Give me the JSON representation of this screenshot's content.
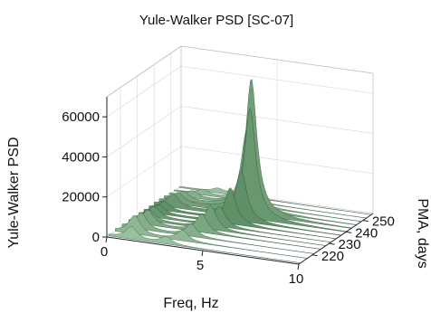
{
  "chart_data": {
    "type": "surface",
    "title": "Yule-Walker PSD [SC-07]",
    "xlabel": "Freq, Hz",
    "ylabel": "PMA, days",
    "zlabel": "Yule-Walker PSD",
    "xlim": [
      0,
      10
    ],
    "ylim": [
      212,
      256
    ],
    "zlim": [
      0,
      70000
    ],
    "x_ticks": [
      0,
      5,
      10
    ],
    "y_ticks": [
      220,
      230,
      240,
      250
    ],
    "z_ticks": [
      0,
      20000,
      40000,
      60000
    ],
    "grid": true,
    "colormap": [
      "#0b2a10",
      "#2f6a33",
      "#7fc38a",
      "#d9f5de"
    ],
    "series": [
      {
        "pma": 213,
        "peaks": [
          {
            "freq": 1.2,
            "value": 6000
          },
          {
            "freq": 3.0,
            "value": 3500
          }
        ]
      },
      {
        "pma": 217,
        "peaks": [
          {
            "freq": 1.0,
            "value": 9000
          },
          {
            "freq": 3.5,
            "value": 5000
          }
        ]
      },
      {
        "pma": 221,
        "peaks": [
          {
            "freq": 1.0,
            "value": 8000
          },
          {
            "freq": 3.6,
            "value": 6000
          }
        ]
      },
      {
        "pma": 225,
        "peaks": [
          {
            "freq": 1.0,
            "value": 7000
          },
          {
            "freq": 3.8,
            "value": 9000
          }
        ]
      },
      {
        "pma": 228,
        "peaks": [
          {
            "freq": 0.8,
            "value": 5000
          },
          {
            "freq": 4.0,
            "value": 12000
          }
        ]
      },
      {
        "pma": 231,
        "peaks": [
          {
            "freq": 0.8,
            "value": 5000
          },
          {
            "freq": 4.2,
            "value": 10000
          }
        ]
      },
      {
        "pma": 234,
        "peaks": [
          {
            "freq": 0.8,
            "value": 4000
          },
          {
            "freq": 4.5,
            "value": 18000
          }
        ]
      },
      {
        "pma": 237,
        "peaks": [
          {
            "freq": 0.8,
            "value": 4000
          },
          {
            "freq": 4.8,
            "value": 25000
          }
        ]
      },
      {
        "pma": 240,
        "peaks": [
          {
            "freq": 1.0,
            "value": 6000
          },
          {
            "freq": 5.0,
            "value": 55000
          }
        ]
      },
      {
        "pma": 243,
        "peaks": [
          {
            "freq": 1.0,
            "value": 5000
          },
          {
            "freq": 4.8,
            "value": 68000
          }
        ]
      },
      {
        "pma": 246,
        "peaks": [
          {
            "freq": 1.0,
            "value": 4000
          },
          {
            "freq": 4.3,
            "value": 40000
          }
        ]
      },
      {
        "pma": 249,
        "peaks": [
          {
            "freq": 1.2,
            "value": 3000
          },
          {
            "freq": 4.0,
            "value": 20000
          }
        ]
      },
      {
        "pma": 252,
        "peaks": [
          {
            "freq": 1.5,
            "value": 2500
          },
          {
            "freq": 3.5,
            "value": 8000
          }
        ]
      },
      {
        "pma": 255,
        "peaks": [
          {
            "freq": 2.0,
            "value": 2000
          },
          {
            "freq": 3.2,
            "value": 4000
          }
        ]
      }
    ]
  }
}
